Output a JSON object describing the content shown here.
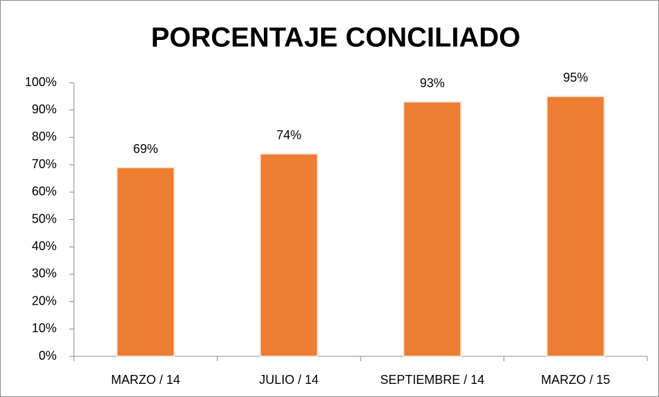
{
  "chart_data": {
    "type": "bar",
    "title": "PORCENTAJE CONCILIADO",
    "categories": [
      "MARZO / 14",
      "JULIO / 14",
      "SEPTIEMBRE / 14",
      "MARZO / 15"
    ],
    "values": [
      69,
      74,
      93,
      95
    ],
    "value_labels": [
      "69%",
      "74%",
      "93%",
      "95%"
    ],
    "color": "#ed7d31",
    "ylim": [
      0,
      100
    ],
    "yticks": [
      {
        "value": 0,
        "label": "0%"
      },
      {
        "value": 10,
        "label": "10%"
      },
      {
        "value": 20,
        "label": "20%"
      },
      {
        "value": 30,
        "label": "30%"
      },
      {
        "value": 40,
        "label": "40%"
      },
      {
        "value": 50,
        "label": "50%"
      },
      {
        "value": 60,
        "label": "60%"
      },
      {
        "value": 70,
        "label": "70%"
      },
      {
        "value": 80,
        "label": "80%"
      },
      {
        "value": 90,
        "label": "90%"
      },
      {
        "value": 100,
        "label": "100%"
      }
    ],
    "grid": false
  }
}
